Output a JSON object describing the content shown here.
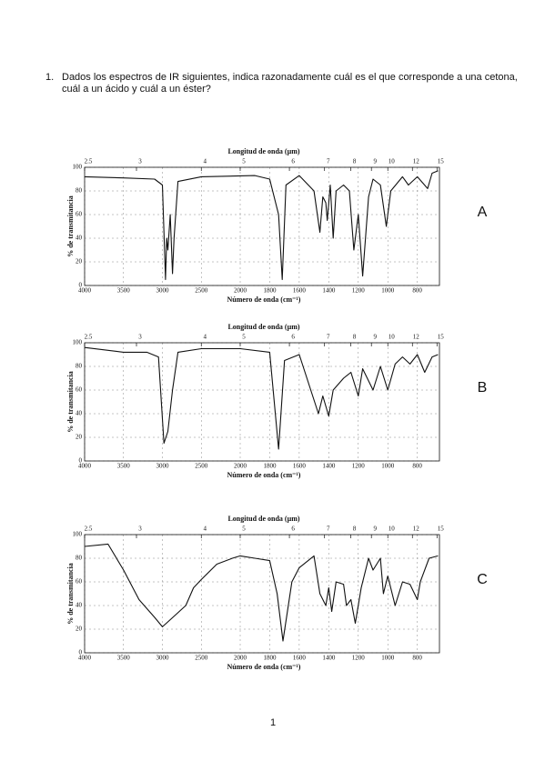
{
  "question": {
    "number": "1.",
    "lines": [
      "Dados los espectros de IR siguientes, indica razonadamente cuál es el que corresponde a una cetona,",
      "cuál a un ácido y cuál a un éster?"
    ]
  },
  "chart_data": [
    {
      "type": "line",
      "title": "Longitud de onda (µm)",
      "xlabel": "Número de onda (cm⁻¹)",
      "ylabel": "% de transmitancia",
      "annotation": "A",
      "xlim": [
        4000,
        650
      ],
      "x_break": 2000,
      "xticks": [
        4000,
        3500,
        3000,
        2500,
        2000,
        1800,
        1600,
        1400,
        1200,
        1000,
        800
      ],
      "top_ticks": [
        2.5,
        3,
        4,
        5,
        6,
        7,
        8,
        9,
        10,
        12,
        15
      ],
      "ylim": [
        0,
        100
      ],
      "yticks": [
        0,
        20,
        40,
        60,
        80,
        100
      ],
      "grid": true,
      "color": "#111111",
      "x": [
        4000,
        3500,
        3100,
        3000,
        2960,
        2945,
        2930,
        2900,
        2870,
        2850,
        2800,
        2500,
        1900,
        1800,
        1740,
        1715,
        1690,
        1600,
        1500,
        1460,
        1440,
        1420,
        1410,
        1390,
        1370,
        1350,
        1300,
        1260,
        1230,
        1200,
        1170,
        1130,
        1100,
        1050,
        1010,
        980,
        900,
        860,
        800,
        730,
        700,
        660
      ],
      "values": [
        92,
        91,
        90,
        85,
        5,
        40,
        30,
        60,
        10,
        40,
        88,
        92,
        93,
        90,
        60,
        5,
        85,
        93,
        80,
        45,
        75,
        70,
        55,
        85,
        40,
        80,
        85,
        80,
        30,
        60,
        8,
        75,
        90,
        85,
        50,
        80,
        92,
        85,
        92,
        82,
        95,
        97
      ]
    },
    {
      "type": "line",
      "title": "Longitud de onda (µm)",
      "xlabel": "Número de onda (cm⁻¹)",
      "ylabel": "% de transmitancia",
      "annotation": "B",
      "xlim": [
        4000,
        650
      ],
      "x_break": 2000,
      "xticks": [
        4000,
        3500,
        3000,
        2500,
        2000,
        1800,
        1600,
        1400,
        1200,
        1000,
        800
      ],
      "top_ticks": [
        2.5,
        3,
        4,
        5,
        6,
        7,
        8,
        9,
        10,
        12,
        15
      ],
      "ylim": [
        0,
        100
      ],
      "yticks": [
        0,
        20,
        40,
        60,
        80,
        100
      ],
      "grid": true,
      "color": "#111111",
      "x": [
        4000,
        3500,
        3200,
        3050,
        2980,
        2930,
        2870,
        2800,
        2500,
        2000,
        1800,
        1740,
        1700,
        1600,
        1470,
        1440,
        1400,
        1370,
        1300,
        1250,
        1200,
        1170,
        1100,
        1050,
        1000,
        950,
        900,
        850,
        800,
        750,
        700,
        660
      ],
      "values": [
        96,
        92,
        92,
        88,
        15,
        25,
        60,
        92,
        95,
        95,
        92,
        10,
        85,
        90,
        40,
        55,
        38,
        60,
        70,
        75,
        55,
        78,
        60,
        80,
        60,
        82,
        88,
        82,
        90,
        75,
        88,
        90
      ]
    },
    {
      "type": "line",
      "title": "Longitud de onda (µm)",
      "xlabel": "Número de onda (cm⁻¹)",
      "ylabel": "% de transmitancia",
      "annotation": "C",
      "xlim": [
        4000,
        650
      ],
      "x_break": 2000,
      "xticks": [
        4000,
        3500,
        3000,
        2500,
        2000,
        1800,
        1600,
        1400,
        1200,
        1000,
        800
      ],
      "top_ticks": [
        2.5,
        3,
        4,
        5,
        6,
        7,
        8,
        9,
        10,
        12,
        15
      ],
      "ylim": [
        0,
        100
      ],
      "yticks": [
        0,
        20,
        40,
        60,
        80,
        100
      ],
      "grid": true,
      "color": "#111111",
      "x": [
        4000,
        3700,
        3500,
        3300,
        3100,
        3000,
        2900,
        2700,
        2600,
        2500,
        2300,
        2100,
        2000,
        1900,
        1800,
        1750,
        1710,
        1650,
        1600,
        1500,
        1460,
        1420,
        1400,
        1380,
        1350,
        1300,
        1280,
        1250,
        1220,
        1180,
        1130,
        1100,
        1050,
        1030,
        1000,
        950,
        900,
        850,
        800,
        780,
        720,
        660
      ],
      "values": [
        90,
        92,
        70,
        45,
        30,
        22,
        28,
        40,
        55,
        62,
        75,
        80,
        82,
        80,
        78,
        50,
        10,
        60,
        72,
        82,
        50,
        40,
        55,
        35,
        60,
        58,
        40,
        45,
        25,
        55,
        80,
        70,
        80,
        50,
        65,
        40,
        60,
        58,
        45,
        60,
        80,
        82
      ]
    }
  ],
  "page_number": "1"
}
